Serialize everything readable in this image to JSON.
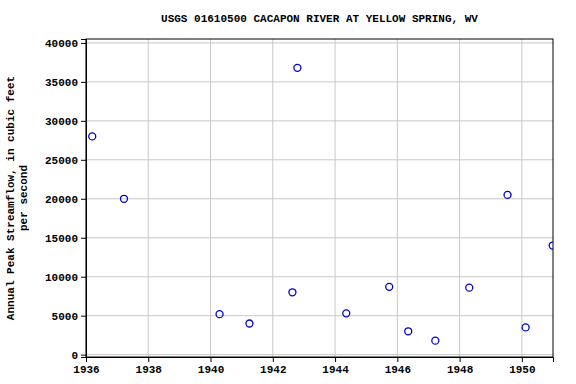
{
  "chart_data": {
    "type": "scatter",
    "title": "USGS 01610500 CACAPON RIVER AT YELLOW SPRING, WV",
    "y_label": [
      "Annual Peak Streamflow, in cubic feet",
      "per second"
    ],
    "x": [
      1936.2,
      1937.22,
      1940.29,
      1941.25,
      1942.63,
      1942.79,
      1944.36,
      1945.74,
      1946.35,
      1947.22,
      1948.31,
      1949.54,
      1950.12,
      1950.99
    ],
    "values": [
      28000,
      20000,
      5200,
      4000,
      8000,
      36800,
      5300,
      8700,
      3000,
      1800,
      8600,
      20500,
      3500,
      14000
    ],
    "color": "#0000cc",
    "marker": "circle-open",
    "xlim": [
      1936,
      1951
    ],
    "xticks": [
      1936,
      1938,
      1940,
      1942,
      1944,
      1946,
      1948,
      1950
    ],
    "ylim": [
      -300,
      40500
    ],
    "yticks": [
      0,
      5000,
      10000,
      15000,
      20000,
      25000,
      30000,
      35000,
      40000
    ],
    "grid": true
  }
}
